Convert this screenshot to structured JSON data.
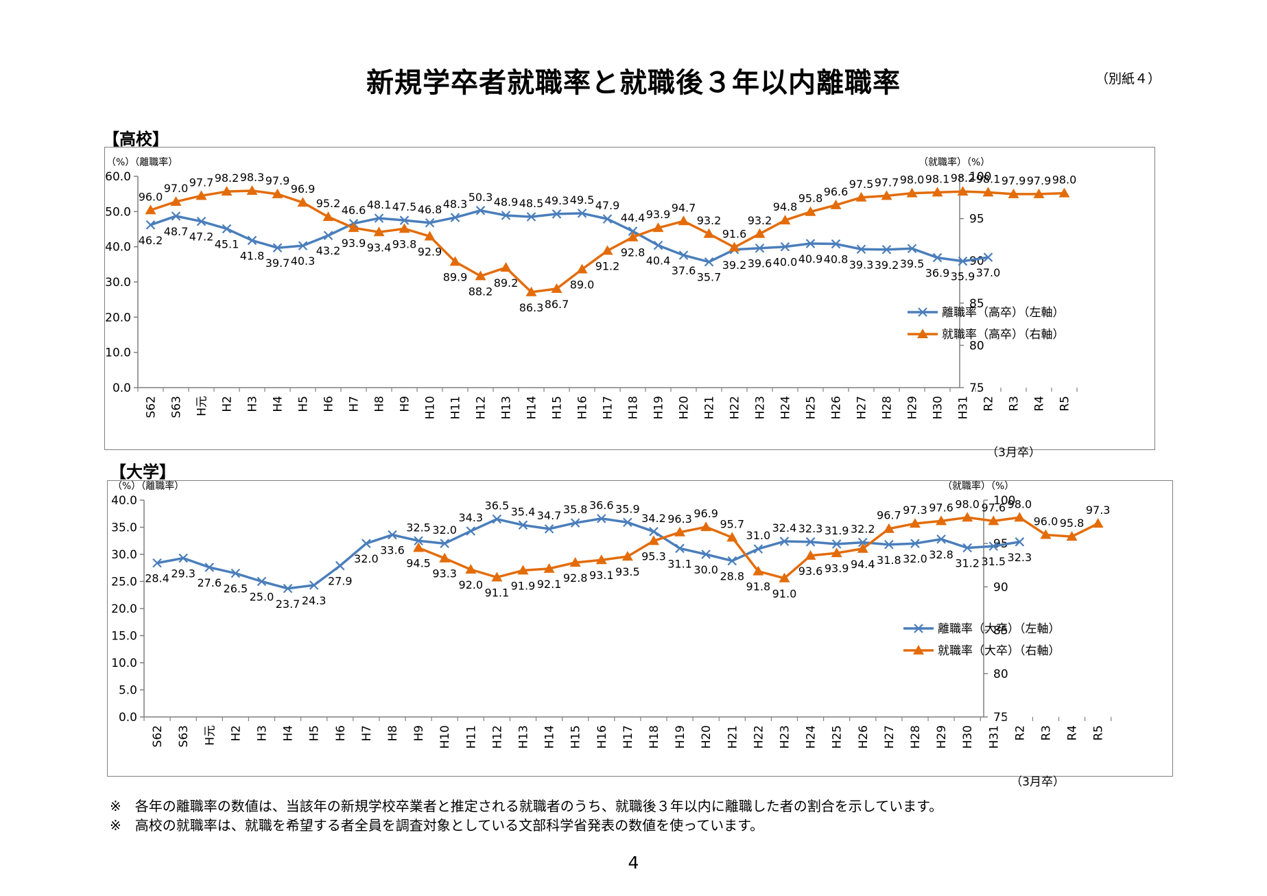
{
  "page": {
    "title": "新規学卒者就職率と就職後３年以内離職率",
    "appendix": "（別紙４）",
    "page_number": "4",
    "notes": [
      "※　各年の離職率の数値は、当該年の新規学校卒業者と推定される就職者のうち、就職後３年以内に離職した者の割合を示しています。",
      "※　高校の就職率は、就職を希望する者全員を調査対象としている文部科学省発表の数値を使っています。"
    ]
  },
  "chart_data": [
    {
      "section_label": "【高校】",
      "type": "line",
      "left_unit": "（%）（離職率）",
      "right_unit": "（就職率）（%）",
      "x_note": "（3月卒）",
      "categories": [
        "S62",
        "S63",
        "H元",
        "H2",
        "H3",
        "H4",
        "H5",
        "H6",
        "H7",
        "H8",
        "H9",
        "H10",
        "H11",
        "H12",
        "H13",
        "H14",
        "H15",
        "H16",
        "H17",
        "H18",
        "H19",
        "H20",
        "H21",
        "H22",
        "H23",
        "H24",
        "H25",
        "H26",
        "H27",
        "H28",
        "H29",
        "H30",
        "H31",
        "R2",
        "R3",
        "R4",
        "R5"
      ],
      "y_left": {
        "min": 0,
        "max": 60,
        "ticks": [
          "0.0",
          "10.0",
          "20.0",
          "30.0",
          "40.0",
          "50.0",
          "60.0"
        ]
      },
      "y_right": {
        "min": 75,
        "max": 100,
        "ticks": [
          "75",
          "80",
          "85",
          "90",
          "95",
          "100"
        ]
      },
      "legend_position": "right-middle",
      "series": [
        {
          "name": "離職率（高卒）（左軸）",
          "axis": "left",
          "color": "#4a7ebb",
          "marker": "x",
          "values": [
            46.2,
            48.7,
            47.2,
            45.1,
            41.8,
            39.7,
            40.3,
            43.2,
            46.6,
            48.1,
            47.5,
            46.8,
            48.3,
            50.3,
            48.9,
            48.5,
            49.3,
            49.5,
            47.9,
            44.4,
            40.4,
            37.6,
            35.7,
            39.2,
            39.6,
            40.0,
            40.9,
            40.8,
            39.3,
            39.2,
            39.5,
            36.9,
            35.9,
            37.0,
            null,
            null,
            null
          ],
          "labels": [
            "46.2",
            "48.7",
            "47.2",
            "45.1",
            "41.8",
            "39.7",
            "40.3",
            "43.2",
            "46.6",
            "48.1",
            "47.5",
            "46.8",
            "48.3",
            "50.3",
            "48.9",
            "48.5",
            "49.3",
            "49.5",
            "47.9",
            "44.4",
            "40.4",
            "37.6",
            "35.7",
            "39.2",
            "39.6",
            "40.0",
            "40.9",
            "40.8",
            "39.3",
            "39.2",
            "39.5",
            "36.9",
            "35.9",
            "37.0",
            null,
            null,
            null
          ]
        },
        {
          "name": "就職率（高卒）（右軸）",
          "axis": "right",
          "color": "#e36c0a",
          "marker": "triangle",
          "values": [
            96.0,
            97.0,
            97.7,
            98.2,
            98.3,
            97.9,
            96.9,
            95.2,
            93.9,
            93.4,
            93.8,
            92.9,
            89.9,
            88.2,
            89.2,
            86.3,
            86.7,
            89.0,
            91.2,
            92.8,
            93.9,
            94.7,
            93.2,
            91.6,
            93.2,
            94.8,
            95.8,
            96.6,
            97.5,
            97.7,
            98.0,
            98.1,
            98.2,
            98.1,
            97.9,
            97.9,
            98.0
          ],
          "labels": [
            "96.0",
            "97.0",
            "97.7",
            "98.2",
            "98.3",
            "97.9",
            "96.9",
            "95.2",
            "93.9",
            "93.4",
            "93.8",
            "92.9",
            "89.9",
            "88.2",
            "89.2",
            "86.3",
            "86.7",
            "89.0",
            "91.2",
            "92.8",
            "93.9",
            "94.7",
            "93.2",
            "91.6",
            "93.2",
            "94.8",
            "95.8",
            "96.6",
            "97.5",
            "97.7",
            "98.0",
            "98.1",
            "98.2",
            "98.1",
            "97.9",
            "97.9",
            "98.0"
          ]
        }
      ]
    },
    {
      "section_label": "【大学】",
      "type": "line",
      "left_unit": "（%）（離職率）",
      "right_unit": "（就職率）（%）",
      "x_note": "（3月卒）",
      "categories": [
        "S62",
        "S63",
        "H元",
        "H2",
        "H3",
        "H4",
        "H5",
        "H6",
        "H7",
        "H8",
        "H9",
        "H10",
        "H11",
        "H12",
        "H13",
        "H14",
        "H15",
        "H16",
        "H17",
        "H18",
        "H19",
        "H20",
        "H21",
        "H22",
        "H23",
        "H24",
        "H25",
        "H26",
        "H27",
        "H28",
        "H29",
        "H30",
        "H31",
        "R2",
        "R3",
        "R4",
        "R5"
      ],
      "y_left": {
        "min": 0,
        "max": 40,
        "ticks": [
          "0.0",
          "5.0",
          "10.0",
          "15.0",
          "20.0",
          "25.0",
          "30.0",
          "35.0",
          "40.0"
        ]
      },
      "y_right": {
        "min": 75,
        "max": 100,
        "ticks": [
          "75",
          "80",
          "85",
          "90",
          "95",
          "100"
        ]
      },
      "legend_position": "right-middle",
      "series": [
        {
          "name": "離職率（大卒）（左軸）",
          "axis": "left",
          "color": "#4a7ebb",
          "marker": "x",
          "values": [
            28.4,
            29.3,
            27.6,
            26.5,
            25.0,
            23.7,
            24.3,
            27.9,
            32.0,
            33.6,
            32.5,
            32.0,
            34.3,
            36.5,
            35.4,
            34.7,
            35.8,
            36.6,
            35.9,
            34.2,
            31.1,
            30.0,
            28.8,
            31.0,
            32.4,
            32.3,
            31.9,
            32.2,
            31.8,
            32.0,
            32.8,
            31.2,
            31.5,
            32.3,
            null,
            null,
            null
          ],
          "labels": [
            "28.4",
            "29.3",
            "27.6",
            "26.5",
            "25.0",
            "23.7",
            "24.3",
            "27.9",
            "32.0",
            "33.6",
            "32.5",
            "32.0",
            "34.3",
            "36.5",
            "35.4",
            "34.7",
            "35.8",
            "36.6",
            "35.9",
            "34.2",
            "31.1",
            "30.0",
            "28.8",
            "31.0",
            "32.4",
            "32.3",
            "31.9",
            "32.2",
            "31.8",
            "32.0",
            "32.8",
            "31.2",
            "31.5",
            "32.3",
            null,
            null,
            null
          ]
        },
        {
          "name": "就職率（大卒）（右軸）",
          "axis": "right",
          "color": "#e36c0a",
          "marker": "triangle",
          "values": [
            null,
            null,
            null,
            null,
            null,
            null,
            null,
            null,
            null,
            null,
            94.5,
            93.3,
            92.0,
            91.1,
            91.9,
            92.1,
            92.8,
            93.1,
            93.5,
            95.3,
            96.3,
            96.9,
            95.7,
            91.8,
            91.0,
            93.6,
            93.9,
            94.4,
            96.7,
            97.3,
            97.6,
            98.0,
            97.6,
            98.0,
            96.0,
            95.8,
            97.3
          ],
          "labels": [
            null,
            null,
            null,
            null,
            null,
            null,
            null,
            null,
            null,
            null,
            "94.5",
            "93.3",
            "92.0",
            "91.1",
            "91.9",
            "92.1",
            "92.8",
            "93.1",
            "93.5",
            "95.3",
            "96.3",
            "96.9",
            "95.7",
            "91.8",
            "91.0",
            "93.6",
            "93.9",
            "94.4",
            "96.7",
            "97.3",
            "97.6",
            "98.0",
            "97.6",
            "98.0",
            "96.0",
            "95.8",
            "97.3"
          ]
        }
      ]
    }
  ]
}
